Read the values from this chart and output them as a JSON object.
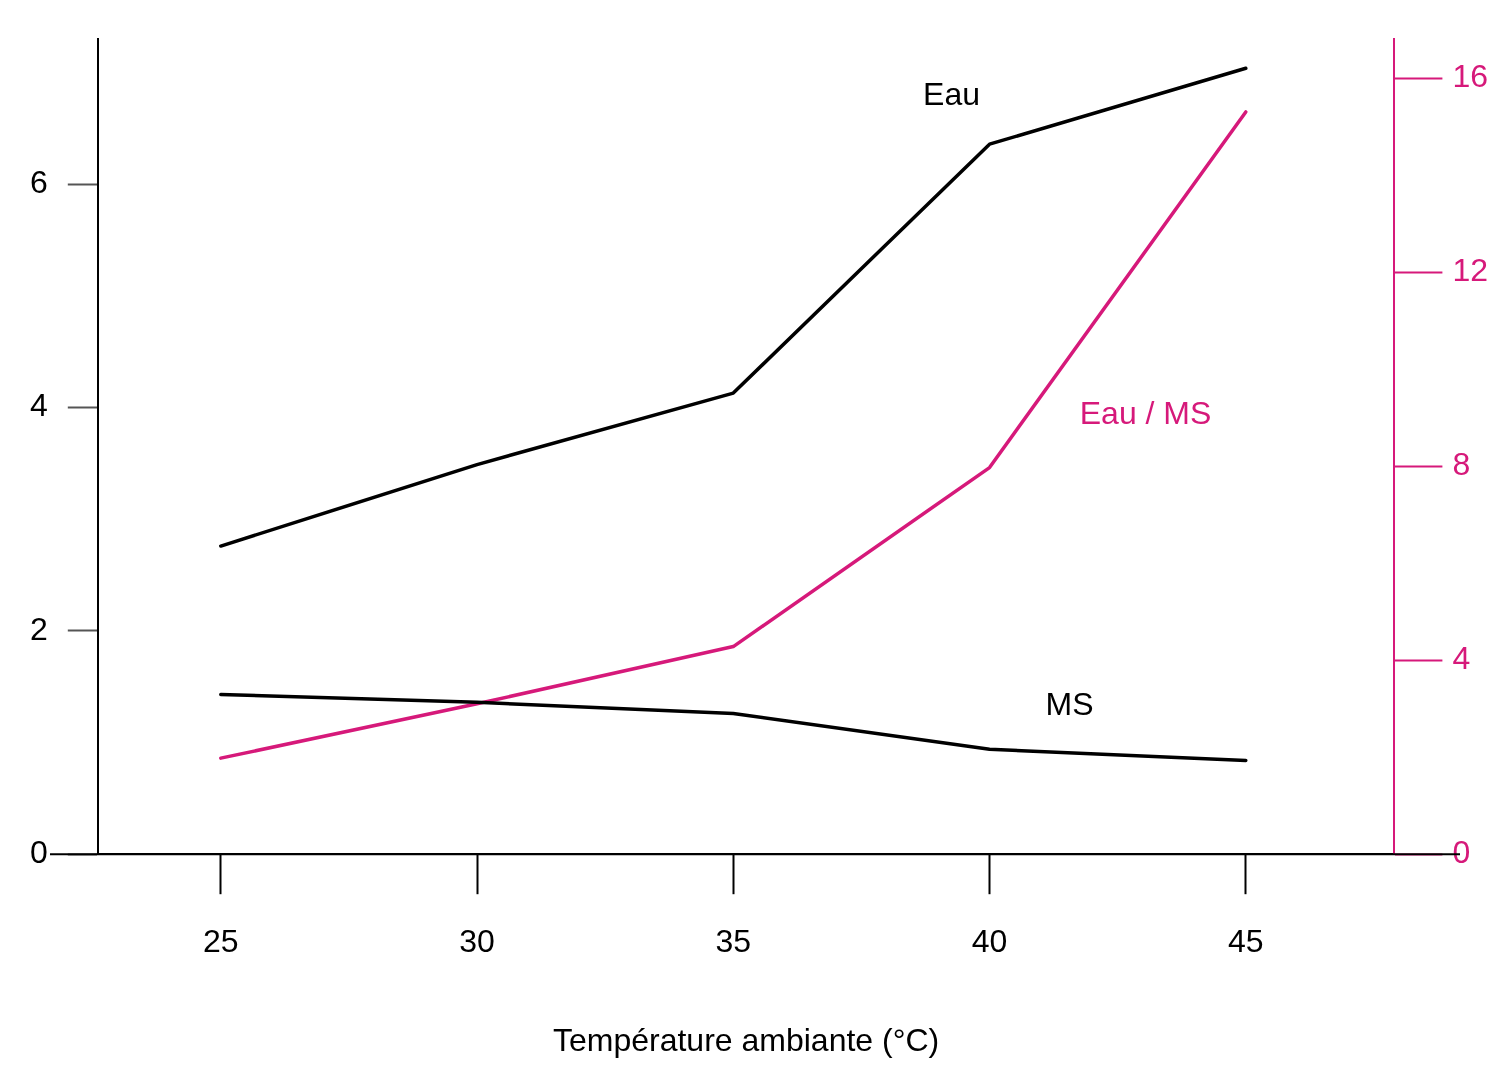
{
  "chart_data": {
    "type": "line",
    "xlabel": "Température ambiante (°C)",
    "x": [
      25,
      30,
      35,
      40,
      45
    ],
    "series": [
      {
        "name": "Eau",
        "color": "#000000",
        "values": [
          2.76,
          3.49,
          4.13,
          6.36,
          7.04
        ]
      },
      {
        "name": "MS",
        "color": "#000000",
        "values": [
          1.43,
          1.36,
          1.26,
          0.94,
          0.84
        ]
      },
      {
        "name": "Eau / MS",
        "color": "#d6197a",
        "axis": "y2",
        "values": [
          1.98,
          3.1,
          4.28,
          7.97,
          15.3
        ]
      }
    ],
    "xlim": [
      22.6,
      47.9
    ],
    "xticks": [
      25,
      30,
      35,
      40,
      45
    ],
    "ylim": [
      0,
      7.3
    ],
    "yticks": [
      0,
      2,
      4,
      6
    ],
    "y2lim": [
      0,
      16.8
    ],
    "y2ticks": [
      0,
      4,
      8,
      12,
      16
    ],
    "grid": false,
    "legend": false,
    "marker": "none",
    "line_style": "solid"
  }
}
